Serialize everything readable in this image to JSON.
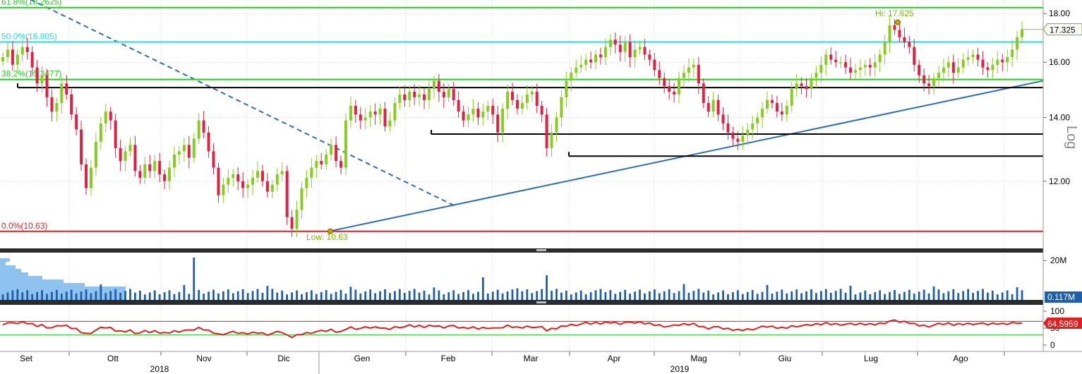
{
  "chart_data": {
    "type": "candlestick",
    "price_panel": {
      "scale": "log",
      "scale_label": "Log",
      "y_ticks": [
        "18.00",
        "16.00",
        "14.00",
        "12.00"
      ],
      "y_tick_values": [
        18.0,
        16.0,
        14.0,
        12.0
      ],
      "ylim": [
        10.2,
        18.6
      ],
      "last_price_label": "17.325",
      "last_price": 17.325,
      "high_label": "Hi: 17.625",
      "high_value": 17.625,
      "low_label": "Low: 10.63",
      "low_value": 10.63,
      "fib_levels": [
        {
          "label": "61.8%(18.2625)",
          "value": 18.2625,
          "color": "#22cc22"
        },
        {
          "label": "50.0%(16.805)",
          "value": 16.805,
          "color": "#22dddd"
        },
        {
          "label": "38.2%(15.3477)",
          "value": 15.3477,
          "color": "#22cc22"
        },
        {
          "label": "0.0%(10.63)",
          "value": 10.63,
          "color": "#e02020"
        }
      ],
      "support_lines": [
        {
          "value": 15.05,
          "start": "Set"
        },
        {
          "value": 13.45,
          "start": "Feb"
        },
        {
          "value": 12.75,
          "start": "Mar"
        }
      ],
      "trendlines": [
        {
          "style": "dashed",
          "from": {
            "date": "Ago 2018",
            "value": 19.3
          },
          "to": {
            "date": "Gen 2019",
            "value": 11.3
          }
        },
        {
          "style": "solid",
          "from": {
            "date": "Dic 2018",
            "value": 10.63
          },
          "to": {
            "date": "Ago 2019",
            "value": 15.3
          }
        }
      ],
      "candles_approx": [
        {
          "m": "Set",
          "c": [
            16.2,
            16.5,
            15.9,
            16.3,
            16.6,
            16.4,
            15.8,
            15.2,
            15.5,
            14.7,
            14.2
          ]
        },
        {
          "m": "Ott",
          "c": [
            14.5,
            15.2,
            14.8,
            14.1,
            13.6,
            12.5,
            11.8,
            12.4,
            13.2,
            13.8,
            14.2,
            13.9,
            13.0,
            12.6,
            12.9,
            13.1,
            12.3,
            12.1,
            12.5
          ]
        },
        {
          "m": "Nov",
          "c": [
            12.3,
            12.6,
            12.2,
            12.0,
            12.4,
            12.8,
            12.9,
            13.1,
            12.7,
            13.3,
            13.9,
            13.5,
            12.9,
            12.4,
            11.6,
            11.9,
            12.1,
            12.2,
            12.0,
            11.8
          ]
        },
        {
          "m": "Dic",
          "c": [
            11.9,
            12.1,
            12.3,
            12.0,
            11.7,
            11.9,
            12.2,
            12.3,
            11.0,
            10.7,
            11.2,
            11.8,
            12.1,
            12.4,
            12.6
          ]
        },
        {
          "m": "Gen",
          "c": [
            12.5,
            12.8,
            13.1,
            12.6,
            12.4,
            13.9,
            14.4,
            14.1,
            13.9,
            14.0,
            14.2,
            14.1,
            14.3,
            13.7,
            13.9,
            14.5,
            14.8,
            14.6,
            14.9,
            14.7
          ]
        },
        {
          "m": "Feb",
          "c": [
            14.8,
            14.6,
            15.0,
            15.3,
            14.9,
            14.7,
            15.0,
            14.6,
            14.2,
            13.9,
            14.1,
            14.3,
            14.0,
            14.2,
            14.4,
            14.1,
            13.5,
            14.3,
            14.9
          ]
        },
        {
          "m": "Mar",
          "c": [
            14.6,
            14.3,
            14.5,
            14.8,
            14.9,
            14.4,
            14.1,
            13.0,
            13.5,
            14.0,
            14.7,
            15.3,
            15.6,
            15.8,
            15.9,
            16.1,
            16.0,
            16.3,
            16.2,
            16.6,
            16.9
          ]
        },
        {
          "m": "Apr",
          "c": [
            16.7,
            16.4,
            16.8,
            16.2,
            16.5,
            16.6,
            16.3,
            16.1,
            15.7,
            15.4,
            15.1,
            14.9,
            14.8,
            15.4,
            15.6,
            15.8,
            15.9,
            15.2,
            14.5
          ]
        },
        {
          "m": "Mag",
          "c": [
            14.2,
            14.6,
            14.1,
            13.8,
            13.5,
            13.3,
            13.2,
            13.4,
            13.6,
            13.8,
            14.0,
            14.3,
            14.6,
            14.5,
            14.2,
            14.1,
            14.4,
            15.0,
            15.2,
            15.1,
            15.0,
            15.4
          ]
        },
        {
          "m": "Giu",
          "c": [
            15.6,
            15.9,
            16.3,
            16.1,
            16.0,
            16.0,
            15.8,
            15.6,
            15.7,
            15.8,
            15.9,
            15.8,
            16.0,
            16.3,
            16.8,
            17.5,
            17.3,
            17.0,
            16.8,
            16.6
          ]
        },
        {
          "m": "Lug",
          "c": [
            15.9,
            15.5,
            15.2,
            15.1,
            15.4,
            15.6,
            15.8,
            16.0,
            15.6,
            15.8,
            16.1,
            16.2,
            16.3,
            16.1,
            15.8,
            15.7,
            15.9,
            16.1,
            16.0,
            16.2,
            16.5,
            17.0,
            17.325
          ]
        }
      ]
    },
    "volume_panel": {
      "y_ticks": [
        "20M"
      ],
      "y_tick_values": [
        20000000
      ],
      "last_label": "0.117M",
      "last_value": 117000,
      "color": "#1f5fa8",
      "profile_color": "#8ec3f0"
    },
    "rsi_panel": {
      "y_ticks": [
        "100",
        "50",
        "0"
      ],
      "y_tick_values": [
        100,
        50,
        0
      ],
      "upper_band": 70,
      "lower_band": 30,
      "last_label": "64.5959",
      "last_value": 64.5959,
      "color": "#e02020"
    },
    "x_axis": {
      "months": [
        "Set",
        "Ott",
        "Nov",
        "Dic",
        "Gen",
        "Feb",
        "Mar",
        "Apr",
        "Mag",
        "Giu",
        "Lug",
        "Ago"
      ],
      "years": [
        "2018",
        "2019"
      ]
    },
    "colors": {
      "up": "#88cc22",
      "down": "#dd2244",
      "support": "#000000",
      "trend": "#2e6fb0",
      "background": "#ffffff"
    }
  }
}
